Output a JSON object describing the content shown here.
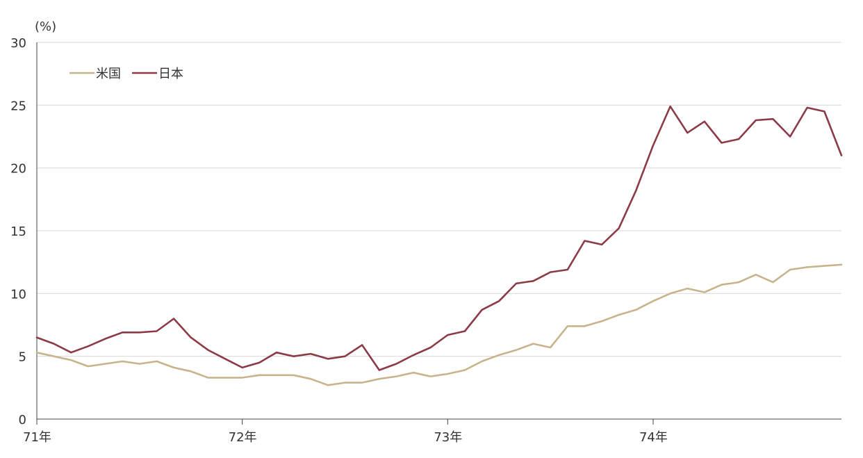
{
  "chart_data": {
    "type": "line",
    "ylabel": "(%)",
    "ylim": [
      0,
      30
    ],
    "yticks": [
      "0",
      "5",
      "10",
      "15",
      "20",
      "25",
      "30"
    ],
    "xticks": [
      "71年",
      "72年",
      "73年",
      "74年"
    ],
    "x_range": [
      0,
      47
    ],
    "grid": true,
    "legend_position": "top-left",
    "series": [
      {
        "name": "米国",
        "color": "#c8b48c",
        "values": [
          5.3,
          5.0,
          4.7,
          4.2,
          4.4,
          4.6,
          4.4,
          4.6,
          4.1,
          3.8,
          3.3,
          3.3,
          3.3,
          3.5,
          3.5,
          3.5,
          3.2,
          2.7,
          2.9,
          2.9,
          3.2,
          3.4,
          3.7,
          3.4,
          3.6,
          3.9,
          4.6,
          5.1,
          5.5,
          6.0,
          5.7,
          7.4,
          7.4,
          7.8,
          8.3,
          8.7,
          9.4,
          10.0,
          10.4,
          10.1,
          10.7,
          10.9,
          11.5,
          10.9,
          11.9,
          12.1,
          12.2,
          12.3
        ]
      },
      {
        "name": "日本",
        "color": "#8b3a46",
        "values": [
          6.5,
          6.0,
          5.3,
          5.8,
          6.4,
          6.9,
          6.9,
          7.0,
          8.0,
          6.5,
          5.5,
          4.8,
          4.1,
          4.5,
          5.3,
          5.0,
          5.2,
          4.8,
          5.0,
          5.9,
          3.9,
          4.4,
          5.1,
          5.7,
          6.7,
          7.0,
          8.7,
          9.4,
          10.8,
          11.0,
          11.7,
          11.9,
          14.2,
          13.9,
          15.2,
          18.2,
          21.8,
          24.9,
          22.8,
          23.7,
          22.0,
          22.3,
          23.8,
          23.9,
          22.5,
          24.8,
          24.5,
          21.0
        ]
      }
    ]
  }
}
